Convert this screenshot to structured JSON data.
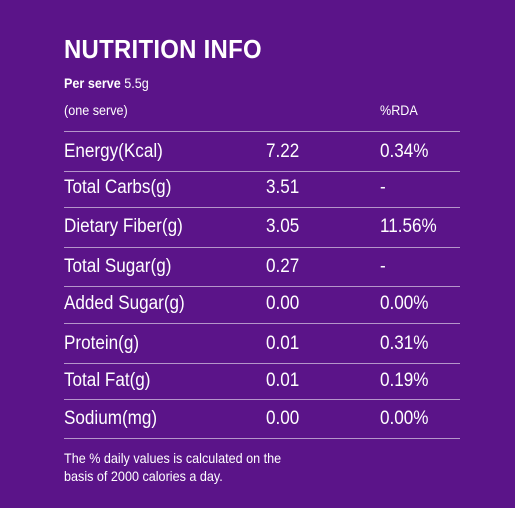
{
  "title": "NUTRITION INFO",
  "serving": {
    "label": "Per serve",
    "value": "5.5g",
    "note": "(one serve)"
  },
  "columns": {
    "rda": "%RDA"
  },
  "rows": [
    {
      "name": "Energy(Kcal)",
      "value": "7.22",
      "rda": "0.34%"
    },
    {
      "name": "Total Carbs(g)",
      "value": "3.51",
      "rda": "-"
    },
    {
      "name": "Dietary Fiber(g)",
      "value": "3.05",
      "rda": "11.56%"
    },
    {
      "name": "Total Sugar(g)",
      "value": "0.27",
      "rda": "-"
    },
    {
      "name": "Added Sugar(g)",
      "value": "0.00",
      "rda": "0.00%"
    },
    {
      "name": "Protein(g)",
      "value": "0.01",
      "rda": "0.31%"
    },
    {
      "name": "Total Fat(g)",
      "value": "0.01",
      "rda": "0.19%"
    },
    {
      "name": "Sodium(mg)",
      "value": "0.00",
      "rda": "0.00%"
    }
  ],
  "footnote": "The % daily values is calculated on the\nbasis of 2000 calories a day.",
  "colors": {
    "background": "#5b1489",
    "text": "#ffffff"
  }
}
